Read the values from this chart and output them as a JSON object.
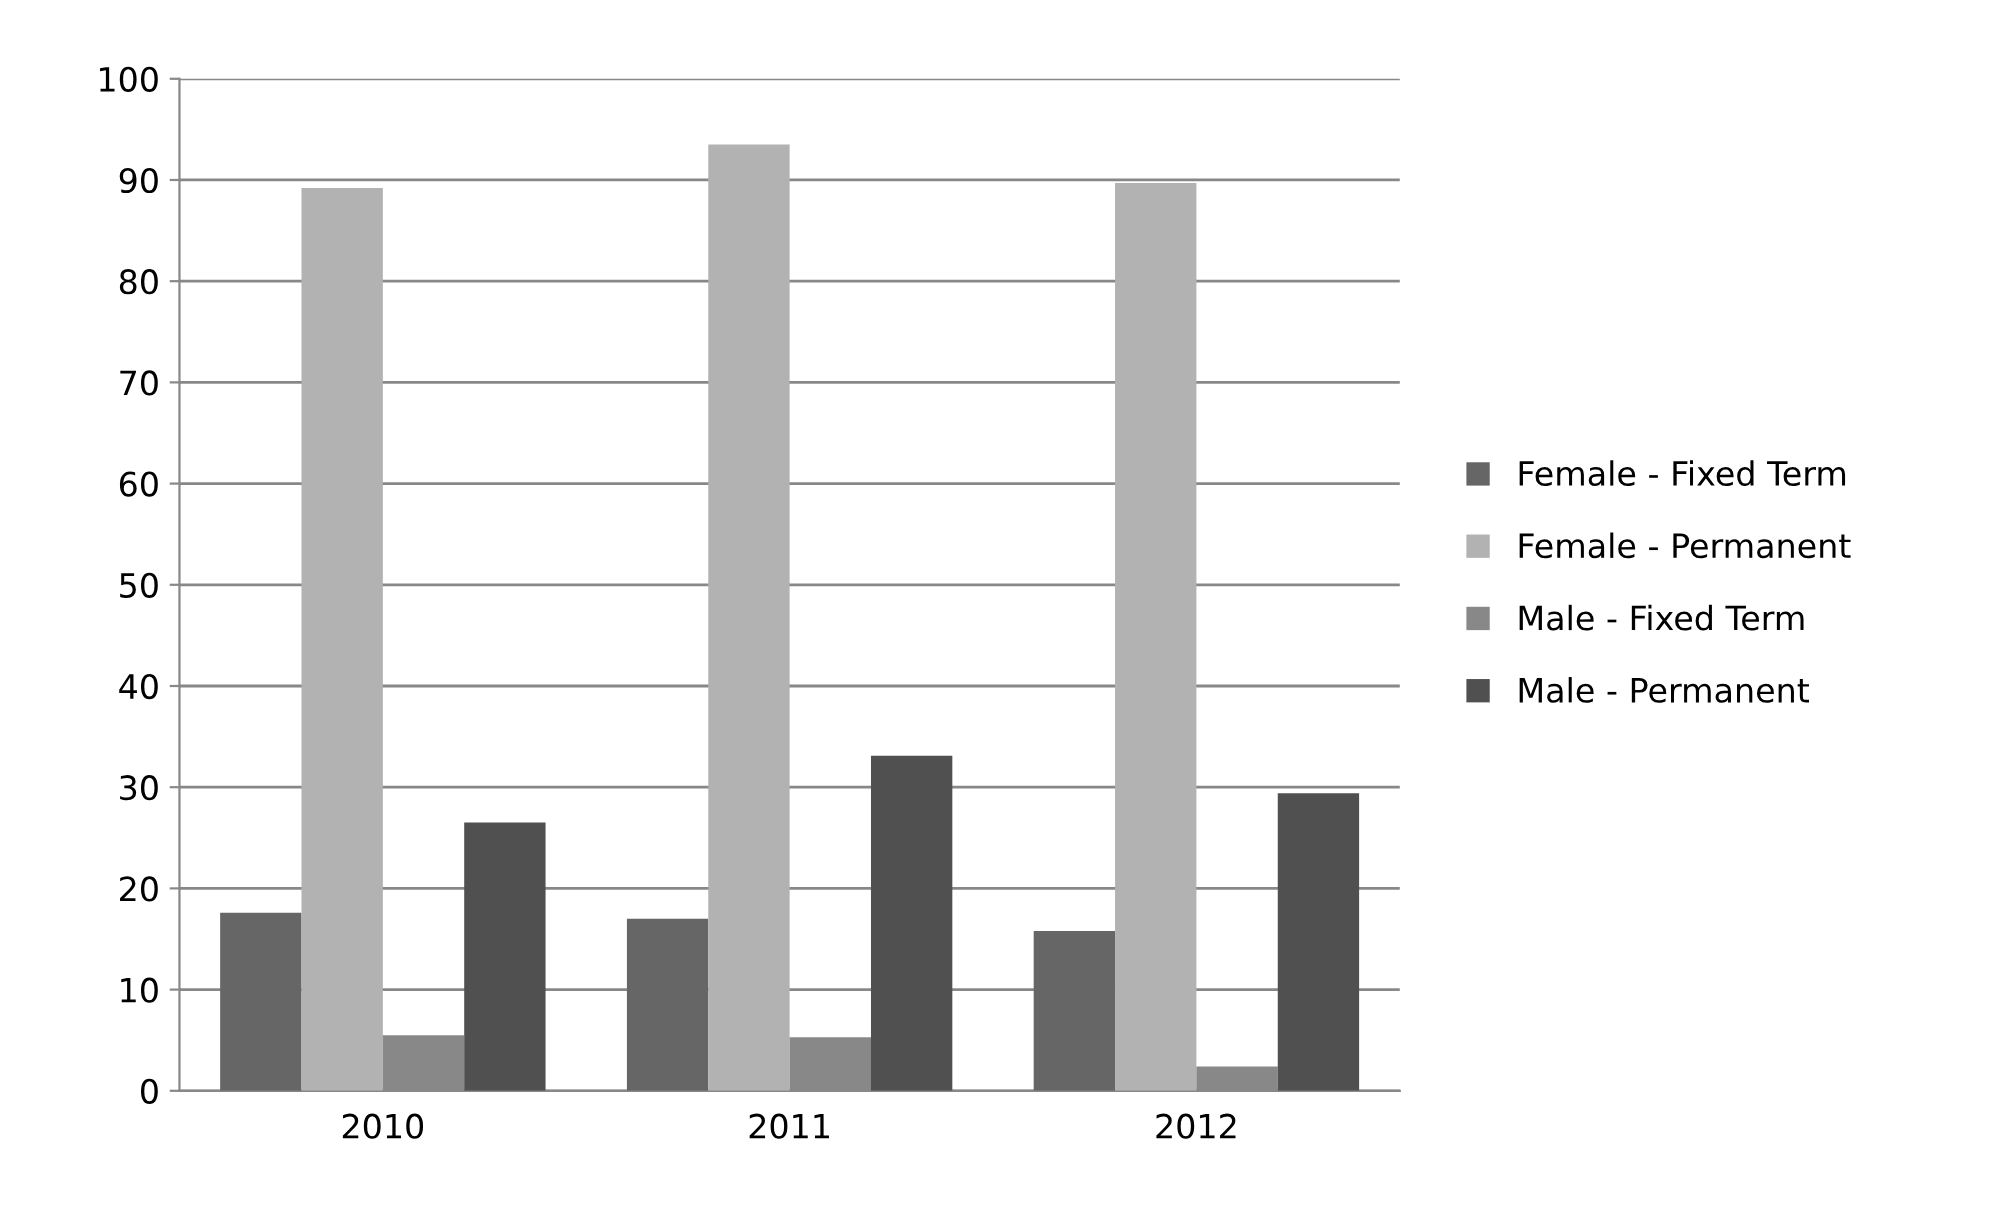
{
  "chart_data": {
    "type": "bar",
    "categories": [
      "2010",
      "2011",
      "2012"
    ],
    "series": [
      {
        "name": "Female - Fixed Term",
        "color": "#666666",
        "values": [
          17.6,
          17.0,
          15.8
        ]
      },
      {
        "name": "Female - Permanent",
        "color": "#b2b2b2",
        "values": [
          89.2,
          93.5,
          89.7
        ]
      },
      {
        "name": "Male - Fixed Term",
        "color": "#888888",
        "values": [
          5.5,
          5.3,
          2.4
        ]
      },
      {
        "name": "Male - Permanent",
        "color": "#505050",
        "values": [
          26.5,
          33.1,
          29.4
        ]
      }
    ],
    "ylim": [
      0,
      100
    ],
    "yticks": [
      0,
      10,
      20,
      30,
      40,
      50,
      60,
      70,
      80,
      90,
      100
    ],
    "grid": "y",
    "legend": "right"
  }
}
